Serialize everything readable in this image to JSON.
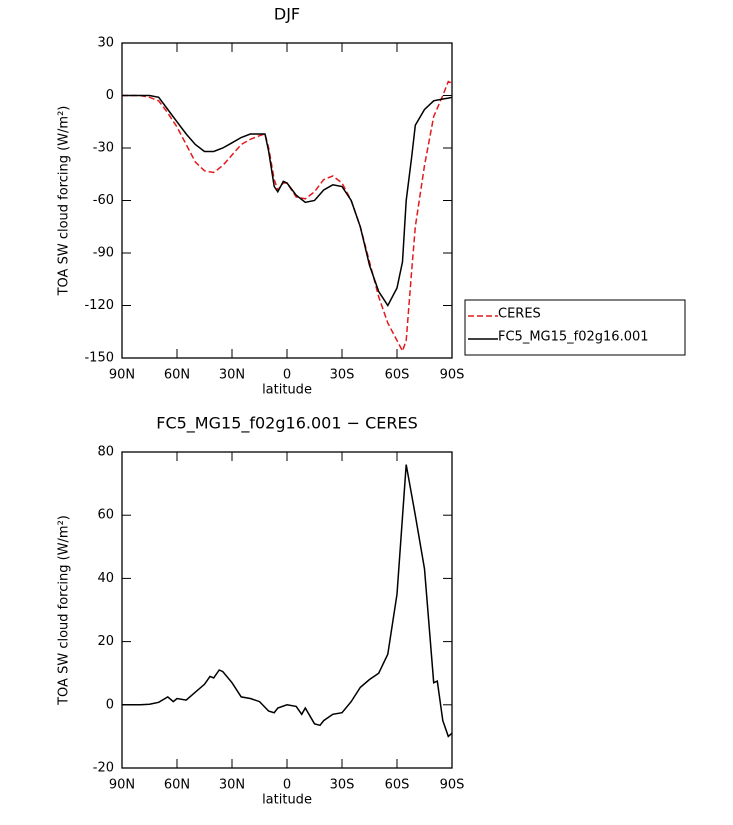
{
  "chart_data": [
    {
      "type": "line",
      "title": "DJF",
      "xlabel": "latitude",
      "ylabel": "TOA SW cloud forcing (W/m²)",
      "x": [
        90,
        85,
        80,
        75,
        70,
        65,
        60,
        55,
        50,
        45,
        40,
        35,
        30,
        25,
        20,
        15,
        12,
        10,
        7,
        5,
        2,
        0,
        -5,
        -10,
        -15,
        -20,
        -25,
        -30,
        -35,
        -40,
        -45,
        -50,
        -55,
        -60,
        -63,
        -65,
        -68,
        -70,
        -75,
        -80,
        -85,
        -88,
        -90
      ],
      "series": [
        {
          "name": "CERES",
          "color": "#e41a1c",
          "linestyle": "dashed",
          "values": [
            0,
            0,
            0,
            -1,
            -3,
            -10,
            -18,
            -28,
            -38,
            -43,
            -44,
            -40,
            -34,
            -28,
            -25,
            -23,
            -22,
            -30,
            -48,
            -54,
            -50,
            -50,
            -58,
            -59,
            -55,
            -48,
            -46,
            -50,
            -60,
            -75,
            -95,
            -115,
            -130,
            -140,
            -146,
            -140,
            -100,
            -75,
            -40,
            -12,
            0,
            8,
            7
          ]
        },
        {
          "name": "FC5_MG15_f02g16.001",
          "color": "#000000",
          "linestyle": "solid",
          "values": [
            0,
            0,
            0,
            0,
            -1,
            -8,
            -15,
            -22,
            -28,
            -32,
            -32,
            -30,
            -27,
            -24,
            -22,
            -22,
            -22,
            -32,
            -52,
            -55,
            -49,
            -50,
            -57,
            -61,
            -60,
            -54,
            -51,
            -52,
            -60,
            -75,
            -97,
            -112,
            -120,
            -110,
            -95,
            -60,
            -35,
            -17,
            -8,
            -3,
            -2,
            -1.5,
            -1
          ]
        }
      ],
      "xlim": [
        90,
        -90
      ],
      "ylim": [
        -150,
        30
      ],
      "xticks": [
        {
          "value": 90,
          "label": "90N"
        },
        {
          "value": 60,
          "label": "60N"
        },
        {
          "value": 30,
          "label": "30N"
        },
        0,
        {
          "value": -30,
          "label": "30S"
        },
        {
          "value": -60,
          "label": "60S"
        },
        {
          "value": -90,
          "label": "90S"
        }
      ],
      "yticks": [
        -150,
        -120,
        -90,
        -60,
        -30,
        0,
        30
      ],
      "legend": "right"
    },
    {
      "type": "line",
      "title": "FC5_MG15_f02g16.001 − CERES",
      "xlabel": "latitude",
      "ylabel": "TOA SW cloud forcing (W/m²)",
      "x": [
        90,
        85,
        80,
        75,
        70,
        65,
        62,
        60,
        55,
        50,
        45,
        42,
        40,
        37,
        35,
        30,
        25,
        20,
        15,
        10,
        7,
        5,
        0,
        -5,
        -8,
        -10,
        -15,
        -18,
        -20,
        -25,
        -30,
        -35,
        -40,
        -45,
        -50,
        -55,
        -60,
        -65,
        -70,
        -75,
        -80,
        -82,
        -85,
        -88,
        -90
      ],
      "series": [
        {
          "name": "FC5_MG15_f02g16.001 − CERES",
          "color": "#000000",
          "linestyle": "solid",
          "values": [
            0,
            0,
            0,
            0.2,
            0.8,
            2.5,
            1,
            2,
            1.5,
            4,
            6.5,
            9,
            8.5,
            11,
            10.5,
            7,
            2.5,
            2,
            1,
            -2,
            -2.5,
            -1,
            0,
            -0.5,
            -3,
            -1,
            -6,
            -6.5,
            -5,
            -3,
            -2.5,
            1,
            5.5,
            8,
            10,
            16,
            35,
            76,
            60,
            43,
            7,
            7.5,
            -5,
            -10,
            -9
          ]
        }
      ],
      "xlim": [
        90,
        -90
      ],
      "ylim": [
        -20,
        80
      ],
      "xticks": [
        {
          "value": 90,
          "label": "90N"
        },
        {
          "value": 60,
          "label": "60N"
        },
        {
          "value": 30,
          "label": "30N"
        },
        0,
        {
          "value": -30,
          "label": "30S"
        },
        {
          "value": -60,
          "label": "60S"
        },
        {
          "value": -90,
          "label": "90S"
        }
      ],
      "yticks": [
        -20,
        0,
        20,
        40,
        60,
        80
      ]
    }
  ]
}
